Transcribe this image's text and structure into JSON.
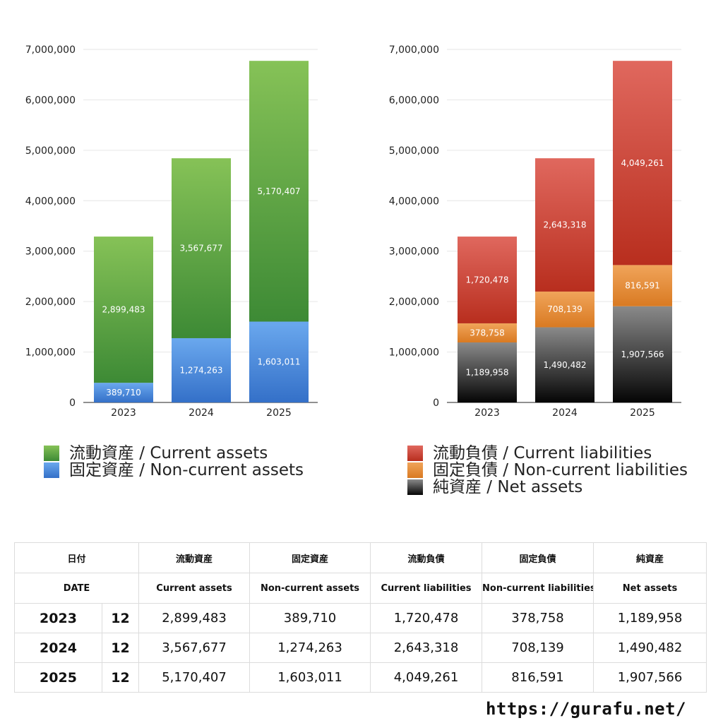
{
  "colors": {
    "current_assets": [
      "#86c257",
      "#3d8a35"
    ],
    "non_current_assets": [
      "#6aa8ee",
      "#3470c8"
    ],
    "current_liabilities": [
      "#e0685e",
      "#b82e1e"
    ],
    "non_current_liabilities": [
      "#f0a45a",
      "#d97a22"
    ],
    "net_assets": [
      "#8a8a8a",
      "#050505"
    ]
  },
  "chart_data": [
    {
      "type": "bar",
      "stacked": true,
      "categories": [
        "2023",
        "2024",
        "2025"
      ],
      "y_ticks": [
        "0",
        "1,000,000",
        "2,000,000",
        "3,000,000",
        "4,000,000",
        "5,000,000",
        "6,000,000",
        "7,000,000"
      ],
      "ylim": [
        0,
        7000000
      ],
      "grid": true,
      "series": [
        {
          "name": "固定資産 / Non-current assets",
          "key": "non_current_assets",
          "values": [
            389710,
            1274263,
            1603011
          ],
          "labels": [
            "389,710",
            "1,274,263",
            "1,603,011"
          ]
        },
        {
          "name": "流動資産 / Current assets",
          "key": "current_assets",
          "values": [
            2899483,
            3567677,
            5170407
          ],
          "labels": [
            "2,899,483",
            "3,567,677",
            "5,170,407"
          ]
        }
      ],
      "legend": [
        "流動資産 / Current assets",
        "固定資産 / Non-current assets"
      ],
      "legend_keys": [
        "current_assets",
        "non_current_assets"
      ],
      "legend_position": "bottom"
    },
    {
      "type": "bar",
      "stacked": true,
      "categories": [
        "2023",
        "2024",
        "2025"
      ],
      "y_ticks": [
        "0",
        "1,000,000",
        "2,000,000",
        "3,000,000",
        "4,000,000",
        "5,000,000",
        "6,000,000",
        "7,000,000"
      ],
      "ylim": [
        0,
        7000000
      ],
      "grid": true,
      "series": [
        {
          "name": "純資産 / Net assets",
          "key": "net_assets",
          "values": [
            1189958,
            1490482,
            1907566
          ],
          "labels": [
            "1,189,958",
            "1,490,482",
            "1,907,566"
          ]
        },
        {
          "name": "固定負債 / Non-current liabilities",
          "key": "non_current_liabilities",
          "values": [
            378758,
            708139,
            816591
          ],
          "labels": [
            "378,758",
            "708,139",
            "816,591"
          ]
        },
        {
          "name": "流動負債 / Current liabilities",
          "key": "current_liabilities",
          "values": [
            1720478,
            2643318,
            4049261
          ],
          "labels": [
            "1,720,478",
            "2,643,318",
            "4,049,261"
          ]
        }
      ],
      "legend": [
        "流動負債 / Current liabilities",
        "固定負債 / Non-current liabilities",
        "純資産 / Net assets"
      ],
      "legend_keys": [
        "current_liabilities",
        "non_current_liabilities",
        "net_assets"
      ],
      "legend_position": "bottom"
    }
  ],
  "table": {
    "header_jp": [
      "日付",
      "流動資産",
      "固定資産",
      "流動負債",
      "固定負債",
      "純資産"
    ],
    "header_en": [
      "DATE",
      "Current assets",
      "Non-current assets",
      "Current liabilities",
      "Non-current liabilities",
      "Net assets"
    ],
    "rows": [
      {
        "year": "2023",
        "month": "12",
        "values": [
          "2,899,483",
          "389,710",
          "1,720,478",
          "378,758",
          "1,189,958"
        ]
      },
      {
        "year": "2024",
        "month": "12",
        "values": [
          "3,567,677",
          "1,274,263",
          "2,643,318",
          "708,139",
          "1,490,482"
        ]
      },
      {
        "year": "2025",
        "month": "12",
        "values": [
          "5,170,407",
          "1,603,011",
          "4,049,261",
          "816,591",
          "1,907,566"
        ]
      }
    ]
  },
  "site_url": "https://gurafu.net/"
}
